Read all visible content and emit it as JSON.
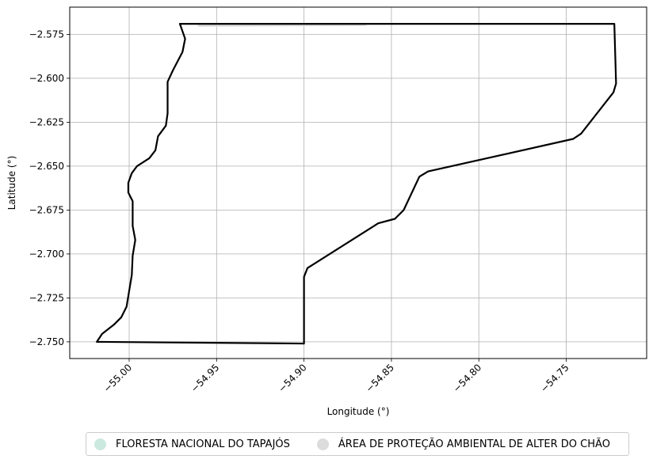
{
  "chart_data": {
    "type": "map",
    "xlabel": "Longitude (°)",
    "ylabel": "Latitude (°)",
    "xlim": [
      -55.034,
      -54.704
    ],
    "ylim": [
      -2.7595,
      -2.5595
    ],
    "grid": true,
    "x_ticks": [
      -55.0,
      -54.95,
      -54.9,
      -54.85,
      -54.8,
      -54.75
    ],
    "x_tick_labels": [
      "−55.00",
      "−54.95",
      "−54.90",
      "−54.85",
      "−54.80",
      "−54.75"
    ],
    "y_ticks": [
      -2.575,
      -2.6,
      -2.625,
      -2.65,
      -2.675,
      -2.7,
      -2.725,
      -2.75
    ],
    "y_tick_labels": [
      "−2.575",
      "−2.600",
      "−2.625",
      "−2.650",
      "−2.675",
      "−2.700",
      "−2.725",
      "−2.750"
    ],
    "legend_position": "bottom-center",
    "series": [
      {
        "name": "FLORESTA NACIONAL DO TAPAJÓS",
        "color": "#cce9df",
        "boundary_color": "#000000",
        "boundary": [
          [
            -54.971,
            -2.569
          ],
          [
            -54.968,
            -2.5775
          ],
          [
            -54.9695,
            -2.585
          ],
          [
            -54.975,
            -2.5955
          ],
          [
            -54.978,
            -2.602
          ],
          [
            -54.978,
            -2.611
          ],
          [
            -54.978,
            -2.62
          ],
          [
            -54.979,
            -2.627
          ],
          [
            -54.9835,
            -2.633
          ],
          [
            -54.985,
            -2.641
          ],
          [
            -54.9885,
            -2.6455
          ],
          [
            -54.9955,
            -2.65
          ],
          [
            -54.9985,
            -2.654
          ],
          [
            -55.0005,
            -2.6595
          ],
          [
            -55.0005,
            -2.665
          ],
          [
            -54.998,
            -2.67
          ],
          [
            -54.998,
            -2.684
          ],
          [
            -54.9965,
            -2.692
          ],
          [
            -54.998,
            -2.701
          ],
          [
            -54.9985,
            -2.712
          ],
          [
            -55.0,
            -2.721
          ],
          [
            -55.0015,
            -2.73
          ],
          [
            -55.0045,
            -2.736
          ],
          [
            -55.0085,
            -2.74
          ],
          [
            -55.0155,
            -2.7455
          ],
          [
            -55.0185,
            -2.75
          ],
          [
            -54.9,
            -2.751
          ],
          [
            -54.9,
            -2.713
          ],
          [
            -54.898,
            -2.708
          ],
          [
            -54.8575,
            -2.6825
          ],
          [
            -54.848,
            -2.68
          ],
          [
            -54.843,
            -2.675
          ],
          [
            -54.834,
            -2.656
          ],
          [
            -54.829,
            -2.653
          ],
          [
            -54.746,
            -2.6345
          ],
          [
            -54.7415,
            -2.6315
          ],
          [
            -54.723,
            -2.608
          ],
          [
            -54.7215,
            -2.603
          ],
          [
            -54.7225,
            -2.569
          ],
          [
            -54.971,
            -2.569
          ]
        ]
      },
      {
        "name": "ÁREA DE PROTEÇÃO AMBIENTAL DE ALTER DO CHÃO",
        "color": "#dcdcdc",
        "boundary_color": "#dcdcdc",
        "boundary": [
          [
            -54.96,
            -2.57
          ],
          [
            -54.865,
            -2.5695
          ]
        ]
      }
    ]
  }
}
